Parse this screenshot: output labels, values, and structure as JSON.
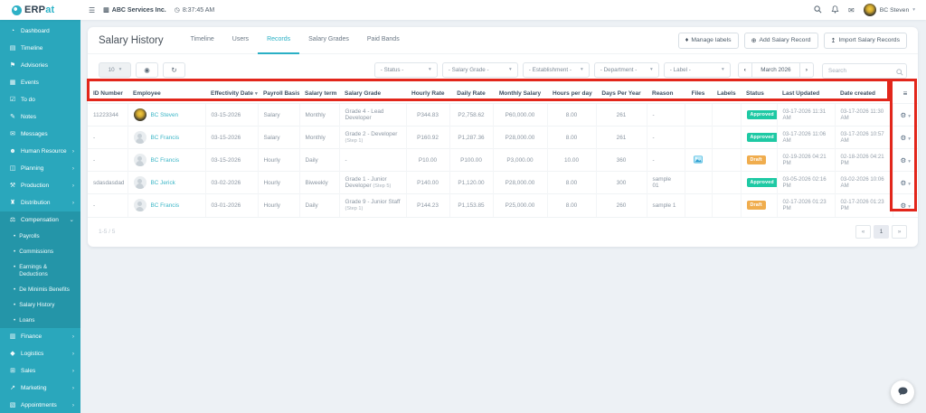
{
  "topbar": {
    "logo_prefix": "ERP",
    "logo_suffix": "at",
    "company": "ABC Services Inc.",
    "time": "8:37:45 AM",
    "user": "BC Steven"
  },
  "sidebar": {
    "items": [
      {
        "label": "Dashboard",
        "icon": "dashboard-icon"
      },
      {
        "label": "Timeline",
        "icon": "timeline-icon"
      },
      {
        "label": "Advisories",
        "icon": "advisories-icon"
      },
      {
        "label": "Events",
        "icon": "events-icon"
      },
      {
        "label": "To do",
        "icon": "todo-icon"
      },
      {
        "label": "Notes",
        "icon": "notes-icon"
      },
      {
        "label": "Messages",
        "icon": "messages-icon"
      },
      {
        "label": "Human Resource",
        "icon": "human-resource-icon",
        "expandable": true
      },
      {
        "label": "Planning",
        "icon": "planning-icon",
        "expandable": true
      },
      {
        "label": "Production",
        "icon": "production-icon",
        "expandable": true
      },
      {
        "label": "Distribution",
        "icon": "distribution-icon",
        "expandable": true
      },
      {
        "label": "Compensation",
        "icon": "compensation-icon",
        "expandable": true,
        "expanded": true,
        "children": [
          "Payrolls",
          "Commissions",
          "Earnings & Deductions",
          "De Minimis Benefits",
          "Salary History",
          "Loans"
        ]
      },
      {
        "label": "Finance",
        "icon": "finance-icon",
        "expandable": true
      },
      {
        "label": "Logistics",
        "icon": "logistics-icon",
        "expandable": true
      },
      {
        "label": "Sales",
        "icon": "sales-icon",
        "expandable": true
      },
      {
        "label": "Marketing",
        "icon": "marketing-icon",
        "expandable": true
      },
      {
        "label": "Appointments",
        "icon": "appointments-icon",
        "expandable": true
      }
    ]
  },
  "page": {
    "title": "Salary History",
    "tabs": [
      {
        "label": "Timeline",
        "active": false
      },
      {
        "label": "Users",
        "active": false
      },
      {
        "label": "Records",
        "active": true
      },
      {
        "label": "Salary Grades",
        "active": false
      },
      {
        "label": "Paid Bands",
        "active": false
      }
    ],
    "actions": {
      "manage_labels": "Manage labels",
      "add_record": "Add Salary Record",
      "import_records": "Import Salary Records"
    }
  },
  "filters": {
    "page_size": "10",
    "selects": [
      "- Status -",
      "- Salary Grade -",
      "- Establishment -",
      "- Department -",
      "- Label -"
    ],
    "month": "March 2026",
    "prev_label": "‹",
    "next_label": "›",
    "search_placeholder": "Search"
  },
  "table": {
    "headers": [
      "ID Number",
      "Employee",
      "Effectivity Date",
      "Payroll Basis",
      "Salary term",
      "Salary Grade",
      "Hourly Rate",
      "Daily Rate",
      "Monthly Salary",
      "Hours per day",
      "Days Per Year",
      "Reason",
      "Files",
      "Labels",
      "Status",
      "Last Updated",
      "Date created"
    ],
    "sort_column": "Effectivity Date",
    "rows": [
      {
        "id": "11223344",
        "employee": "BC Steven",
        "avatar": "photo",
        "effectivity": "03-15-2026",
        "payroll_basis": "Salary",
        "salary_term": "Monthly",
        "grade": "Grade 4 - Lead Developer",
        "grade_step": "",
        "hourly": "P344.83",
        "daily": "P2,758.62",
        "monthly": "P60,000.00",
        "hours_per_day": "8.00",
        "days_per_year": "261",
        "reason": "-",
        "files": "",
        "labels": "",
        "status": "Approved",
        "last_updated": "03-17-2026 11:31 AM",
        "date_created": "03-17-2026 11:30 AM"
      },
      {
        "id": "-",
        "employee": "BC Francis",
        "avatar": "placeholder",
        "effectivity": "03-15-2026",
        "payroll_basis": "Salary",
        "salary_term": "Monthly",
        "grade": "Grade 2 - Developer",
        "grade_step": "(Step 1)",
        "hourly": "P160.92",
        "daily": "P1,287.36",
        "monthly": "P28,000.00",
        "hours_per_day": "8.00",
        "days_per_year": "261",
        "reason": "-",
        "files": "",
        "labels": "",
        "status": "Approved",
        "last_updated": "03-17-2026 11:06 AM",
        "date_created": "03-17-2026 10:57 AM"
      },
      {
        "id": "-",
        "employee": "BC Francis",
        "avatar": "placeholder",
        "effectivity": "03-15-2026",
        "payroll_basis": "Hourly",
        "salary_term": "Daily",
        "grade": "-",
        "grade_step": "",
        "hourly": "P10.00",
        "daily": "P100.00",
        "monthly": "P3,000.00",
        "hours_per_day": "10.00",
        "days_per_year": "360",
        "reason": "-",
        "files": "image",
        "labels": "",
        "status": "Draft",
        "last_updated": "02-19-2026 04:21 PM",
        "date_created": "02-18-2026 04:21 PM"
      },
      {
        "id": "sdasdasdad",
        "employee": "BC Jerick",
        "avatar": "placeholder",
        "effectivity": "03-02-2026",
        "payroll_basis": "Hourly",
        "salary_term": "Biweekly",
        "grade": "Grade 1 - Junior Developer",
        "grade_step": "(Step 5)",
        "hourly": "P140.00",
        "daily": "P1,120.00",
        "monthly": "P28,000.00",
        "hours_per_day": "8.00",
        "days_per_year": "300",
        "reason": "sample 01",
        "files": "",
        "labels": "",
        "status": "Approved",
        "last_updated": "03-05-2026 02:16 PM",
        "date_created": "03-02-2026 10:06 AM"
      },
      {
        "id": "-",
        "employee": "BC Francis",
        "avatar": "placeholder",
        "effectivity": "03-01-2026",
        "payroll_basis": "Hourly",
        "salary_term": "Daily",
        "grade": "Grade 9 - Junior Staff",
        "grade_step": "(Step 1)",
        "hourly": "P144.23",
        "daily": "P1,153.85",
        "monthly": "P25,000.00",
        "hours_per_day": "8.00",
        "days_per_year": "260",
        "reason": "sample 1",
        "files": "",
        "labels": "",
        "status": "Draft",
        "last_updated": "02-17-2026 01:23 PM",
        "date_created": "02-17-2026 01:23 PM"
      }
    ],
    "footer": {
      "range": "1-5 / 5",
      "page": "1",
      "prev": "«",
      "next": "»"
    }
  },
  "colors": {
    "accent": "#2aa7bc",
    "annotation": "#e2261b",
    "status": {
      "Approved": "#1ec9a4",
      "Draft": "#f0ad4e"
    }
  }
}
